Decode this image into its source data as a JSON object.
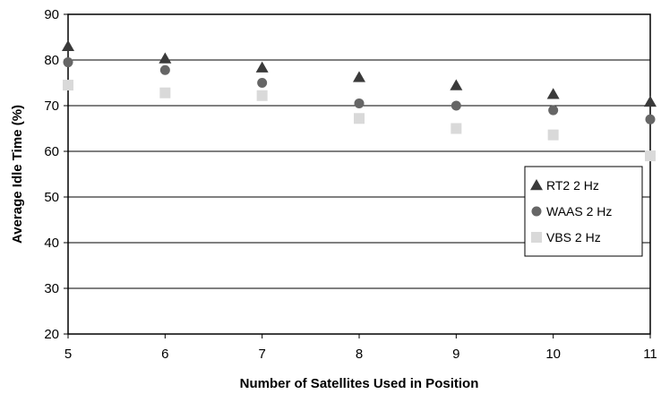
{
  "chart_data": {
    "type": "scatter",
    "xlabel": "Number of Satellites Used in Position",
    "ylabel": "Average Idle Time (%)",
    "xlim": [
      5,
      11
    ],
    "ylim": [
      20,
      90
    ],
    "x_ticks": [
      "5",
      "6",
      "7",
      "8",
      "9",
      "10",
      "11"
    ],
    "y_ticks": [
      "20",
      "30",
      "40",
      "50",
      "60",
      "70",
      "80",
      "90"
    ],
    "grid": "horizontal",
    "legend_position": "right",
    "series": [
      {
        "name": "RT2 2 Hz",
        "marker": "triangle",
        "color": "#3a3a3a",
        "x": [
          5,
          6,
          7,
          8,
          9,
          10,
          11
        ],
        "y": [
          83,
          80.3,
          78.3,
          76.2,
          74.4,
          72.5,
          70.8
        ]
      },
      {
        "name": "WAAS 2 Hz",
        "marker": "circle",
        "color": "#666666",
        "x": [
          5,
          6,
          7,
          8,
          9,
          10,
          11
        ],
        "y": [
          79.5,
          77.8,
          75,
          70.5,
          70,
          69,
          67
        ]
      },
      {
        "name": "VBS 2 Hz",
        "marker": "square",
        "color": "#d9d9d9",
        "x": [
          5,
          6,
          7,
          8,
          9,
          10,
          11
        ],
        "y": [
          74.5,
          72.8,
          72.2,
          67.2,
          65,
          63.6,
          59
        ]
      }
    ]
  }
}
